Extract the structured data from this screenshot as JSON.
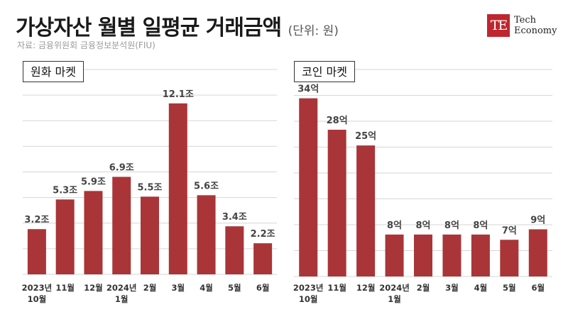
{
  "header": {
    "title": "가상자산 월별 일평균 거래금액",
    "unit": "(단위: 원)",
    "source": "자료: 금융위원회 금융정보분석원(FIU)"
  },
  "logo": {
    "mark": "TE",
    "line1": "Tech",
    "line2": "Economy"
  },
  "colors": {
    "bar": "#a93538",
    "logo": "#c0262d"
  },
  "chart_data": [
    {
      "type": "bar",
      "panel_label": "원화 마켓",
      "categories": [
        [
          "2023년",
          "10월"
        ],
        [
          "11월"
        ],
        [
          "12월"
        ],
        [
          "2024년",
          "1월"
        ],
        [
          "2월"
        ],
        [
          "3월"
        ],
        [
          "4월"
        ],
        [
          "5월"
        ],
        [
          "6월"
        ]
      ],
      "values": [
        3.2,
        5.3,
        5.9,
        6.9,
        5.5,
        12.1,
        5.6,
        3.4,
        2.2
      ],
      "value_labels": [
        "3.2조",
        "5.3조",
        "5.9조",
        "6.9조",
        "5.5조",
        "12.1조",
        "5.6조",
        "3.4조",
        "2.2조"
      ],
      "ylim": [
        0,
        14.5
      ],
      "grid": true
    },
    {
      "type": "bar",
      "panel_label": "코인 마켓",
      "categories": [
        [
          "2023년",
          "10월"
        ],
        [
          "11월"
        ],
        [
          "12월"
        ],
        [
          "2024년",
          "1월"
        ],
        [
          "2월"
        ],
        [
          "3월"
        ],
        [
          "4월"
        ],
        [
          "5월"
        ],
        [
          "6월"
        ]
      ],
      "values": [
        34,
        28,
        25,
        8,
        8,
        8,
        8,
        7,
        9
      ],
      "value_labels": [
        "34억",
        "28억",
        "25억",
        "8억",
        "8억",
        "8억",
        "8억",
        "7억",
        "9억"
      ],
      "ylim": [
        0,
        39.5
      ],
      "grid": true
    }
  ]
}
